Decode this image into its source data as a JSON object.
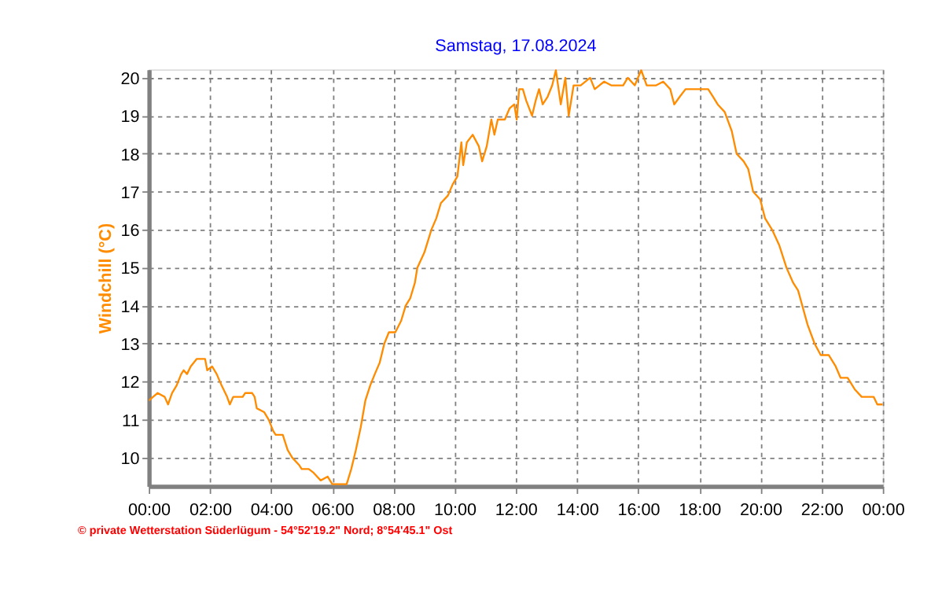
{
  "chart_data": {
    "type": "line",
    "title": "Samstag, 17.08.2024",
    "ylabel": "Windchill  (°C)",
    "x": [
      0,
      0.14,
      0.29,
      0.52,
      0.63,
      0.76,
      0.91,
      1.06,
      1.14,
      1.25,
      1.37,
      1.57,
      1.84,
      1.91,
      2.07,
      2.22,
      2.38,
      2.56,
      2.65,
      2.76,
      3.07,
      3.15,
      3.38,
      3.46,
      3.53,
      3.77,
      3.92,
      4.07,
      4.15,
      4.38,
      4.54,
      4.69,
      4.92,
      5.0,
      5.23,
      5.39,
      5.62,
      5.85,
      6.0,
      6.47,
      6.62,
      6.77,
      6.93,
      7.08,
      7.24,
      7.39,
      7.55,
      7.7,
      7.85,
      8.06,
      8.25,
      8.4,
      8.55,
      8.7,
      8.78,
      9.01,
      9.24,
      9.4,
      9.55,
      9.78,
      9.94,
      10.09,
      10.22,
      10.28,
      10.4,
      10.59,
      10.79,
      10.9,
      11.05,
      11.2,
      11.3,
      11.41,
      11.64,
      11.8,
      11.95,
      12.03,
      12.11,
      12.23,
      12.34,
      12.53,
      12.65,
      12.76,
      12.88,
      13.04,
      13.19,
      13.31,
      13.47,
      13.62,
      13.73,
      13.89,
      14.12,
      14.43,
      14.58,
      14.89,
      15.12,
      15.51,
      15.66,
      15.89,
      16.1,
      16.28,
      16.59,
      16.82,
      17.05,
      17.18,
      17.36,
      17.55,
      17.75,
      18.01,
      18.29,
      18.45,
      18.6,
      18.83,
      19.06,
      19.22,
      19.45,
      19.6,
      19.76,
      19.99,
      20.15,
      20.38,
      20.61,
      20.85,
      21.07,
      21.23,
      21.54,
      21.77,
      21.97,
      22.23,
      22.46,
      22.62,
      22.85,
      23.08,
      23.31,
      23.7,
      23.82,
      24.0
    ],
    "series": [
      {
        "color": "#ff8c00",
        "values": [
          11.5,
          11.6,
          11.7,
          11.6,
          11.4,
          11.7,
          11.9,
          12.2,
          12.3,
          12.2,
          12.4,
          12.6,
          12.6,
          12.3,
          12.4,
          12.2,
          11.9,
          11.6,
          11.4,
          11.6,
          11.6,
          11.7,
          11.7,
          11.6,
          11.3,
          11.2,
          11.0,
          10.7,
          10.6,
          10.6,
          10.2,
          10.0,
          9.8,
          9.7,
          9.7,
          9.6,
          9.4,
          9.5,
          9.3,
          9.3,
          9.7,
          10.2,
          10.8,
          11.5,
          11.9,
          12.2,
          12.5,
          13.0,
          13.3,
          13.3,
          13.6,
          14.0,
          14.2,
          14.6,
          15.0,
          15.4,
          16.0,
          16.3,
          16.7,
          16.9,
          17.2,
          17.4,
          18.3,
          17.7,
          18.3,
          18.5,
          18.2,
          17.8,
          18.2,
          18.9,
          18.5,
          18.9,
          18.9,
          19.2,
          19.3,
          18.9,
          19.7,
          19.7,
          19.4,
          19.0,
          19.4,
          19.7,
          19.3,
          19.5,
          19.8,
          20.2,
          19.3,
          20.0,
          19.0,
          19.8,
          19.8,
          20.0,
          19.7,
          19.9,
          19.8,
          19.8,
          20.0,
          19.8,
          20.2,
          19.8,
          19.8,
          19.9,
          19.7,
          19.3,
          19.5,
          19.7,
          19.7,
          19.7,
          19.7,
          19.5,
          19.3,
          19.1,
          18.6,
          18.0,
          17.8,
          17.6,
          17.0,
          16.8,
          16.3,
          16.0,
          15.6,
          15.0,
          14.6,
          14.4,
          13.5,
          13.0,
          12.7,
          12.7,
          12.4,
          12.1,
          12.1,
          11.8,
          11.6,
          11.6,
          11.4,
          11.4
        ]
      }
    ],
    "xlim": [
      0,
      24
    ],
    "xticks": [
      {
        "value": 0,
        "label": "00:00"
      },
      {
        "value": 2,
        "label": "02:00"
      },
      {
        "value": 4,
        "label": "04:00"
      },
      {
        "value": 6,
        "label": "06:00"
      },
      {
        "value": 8,
        "label": "08:00"
      },
      {
        "value": 10,
        "label": "10:00"
      },
      {
        "value": 12,
        "label": "12:00"
      },
      {
        "value": 14,
        "label": "14:00"
      },
      {
        "value": 16,
        "label": "16:00"
      },
      {
        "value": 18,
        "label": "18:00"
      },
      {
        "value": 20,
        "label": "20:00"
      },
      {
        "value": 22,
        "label": "22:00"
      },
      {
        "value": 24,
        "label": "00:00"
      }
    ],
    "ylim": [
      9.25,
      20.22
    ],
    "yticks": [
      10,
      11,
      12,
      13,
      14,
      15,
      16,
      17,
      18,
      19,
      20
    ],
    "grid": true,
    "line_style": "solid",
    "marker": "none",
    "annotations": [
      "© private Wetterstation Süderlügum - 54°52'19.2\" Nord; 8°54'45.1\" Ost"
    ]
  }
}
